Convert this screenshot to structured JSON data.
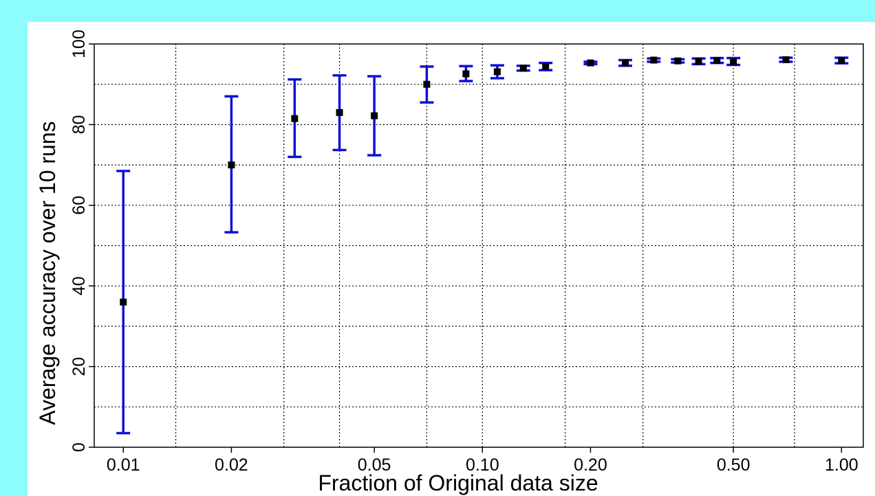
{
  "chart_data": {
    "type": "scatter",
    "title": "",
    "xlabel": "Fraction of Original data size",
    "ylabel": "Average accuracy over 10 runs",
    "x_scale": "log",
    "x_ticks": [
      0.01,
      0.02,
      0.05,
      0.1,
      0.2,
      0.5,
      1.0
    ],
    "x_tick_labels": [
      "0.01",
      "0.02",
      "0.05",
      "0.10",
      "0.20",
      "0.50",
      "1.00"
    ],
    "y_ticks": [
      0,
      20,
      40,
      60,
      80,
      100
    ],
    "y_tick_labels": [
      "0",
      "20",
      "40",
      "60",
      "80",
      "100"
    ],
    "ylim": [
      0,
      100
    ],
    "xlim": [
      0.0083,
      1.15
    ],
    "grid": true,
    "series": [
      {
        "marker_color": "#000000",
        "errorbar_color": "#1010d8",
        "points": [
          {
            "x": 0.01,
            "y": 36.0,
            "low": 3.5,
            "high": 68.5
          },
          {
            "x": 0.02,
            "y": 70.0,
            "low": 53.3,
            "high": 87.0
          },
          {
            "x": 0.03,
            "y": 81.5,
            "low": 72.0,
            "high": 91.2
          },
          {
            "x": 0.04,
            "y": 83.0,
            "low": 73.7,
            "high": 92.2
          },
          {
            "x": 0.05,
            "y": 82.2,
            "low": 72.4,
            "high": 92.0
          },
          {
            "x": 0.07,
            "y": 90.0,
            "low": 85.5,
            "high": 94.4
          },
          {
            "x": 0.09,
            "y": 92.6,
            "low": 90.8,
            "high": 94.5
          },
          {
            "x": 0.11,
            "y": 93.1,
            "low": 91.5,
            "high": 94.7
          },
          {
            "x": 0.13,
            "y": 94.0,
            "low": 93.4,
            "high": 94.6
          },
          {
            "x": 0.15,
            "y": 94.4,
            "low": 93.5,
            "high": 95.3
          },
          {
            "x": 0.2,
            "y": 95.3,
            "low": 95.0,
            "high": 95.6
          },
          {
            "x": 0.25,
            "y": 95.3,
            "low": 94.6,
            "high": 96.0
          },
          {
            "x": 0.3,
            "y": 96.0,
            "low": 95.6,
            "high": 96.4
          },
          {
            "x": 0.35,
            "y": 95.8,
            "low": 95.4,
            "high": 96.2
          },
          {
            "x": 0.4,
            "y": 95.7,
            "low": 95.0,
            "high": 96.4
          },
          {
            "x": 0.45,
            "y": 95.9,
            "low": 95.3,
            "high": 96.5
          },
          {
            "x": 0.5,
            "y": 95.6,
            "low": 94.8,
            "high": 96.5
          },
          {
            "x": 0.7,
            "y": 96.1,
            "low": 95.6,
            "high": 96.6
          },
          {
            "x": 1.0,
            "y": 95.9,
            "low": 95.2,
            "high": 96.6
          }
        ]
      }
    ]
  }
}
